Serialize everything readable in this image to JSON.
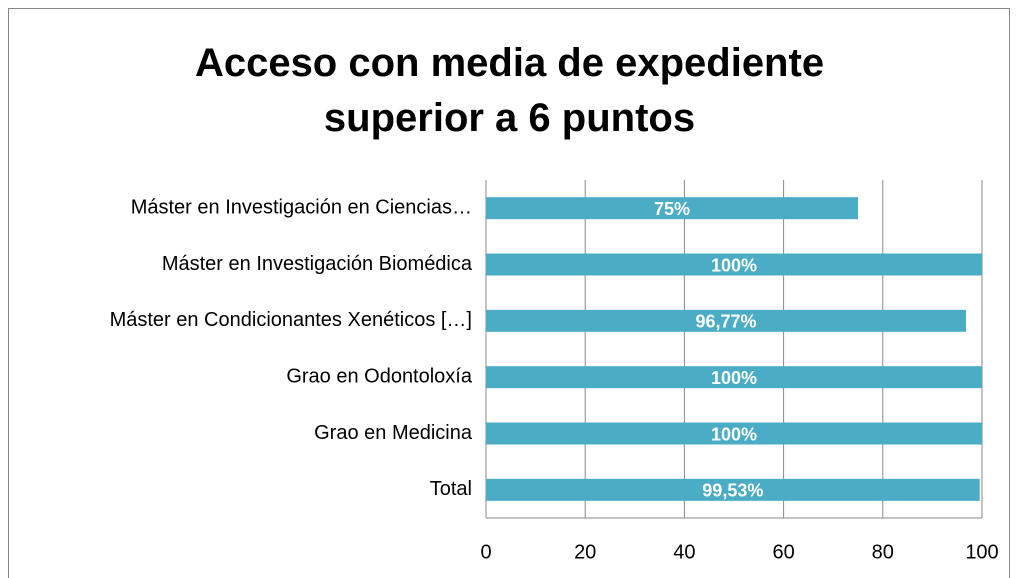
{
  "chart_data": {
    "type": "bar",
    "orientation": "horizontal",
    "title": "Acceso con media de expediente superior a 6 puntos",
    "categories": [
      "Máster en Investigación en Ciencias…",
      "Máster en Investigación Biomédica",
      "Máster en Condicionantes Xenéticos […]",
      "Grao en Odontoloxía",
      "Grao en Medicina",
      "Total"
    ],
    "values": [
      75,
      100,
      96.77,
      100,
      100,
      99.53
    ],
    "value_labels": [
      "75%",
      "100%",
      "96,77%",
      "100%",
      "100%",
      "99,53%"
    ],
    "color": "#4bacc6",
    "xlim": [
      0,
      100
    ],
    "xticks": [
      0,
      20,
      40,
      60,
      80,
      100
    ],
    "grid": true
  }
}
